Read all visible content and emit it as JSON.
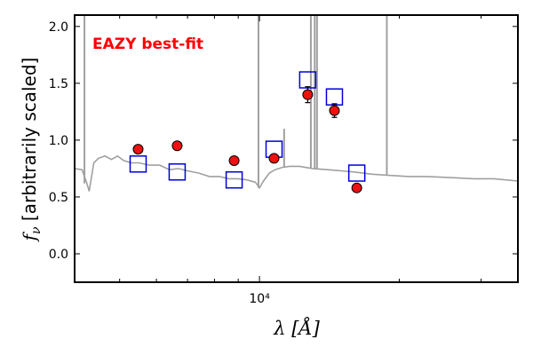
{
  "chart_data": {
    "type": "scatter",
    "title": "",
    "xlabel": "λ [Å]",
    "ylabel": "f_ν [arbitrarily scaled]",
    "x_scale": "log",
    "xlim": [
      4000,
      36000
    ],
    "ylim": [
      -0.25,
      2.1
    ],
    "y_ticks": [
      0.0,
      0.5,
      1.0,
      1.5,
      2.0
    ],
    "y_tick_labels": [
      "0.0",
      "0.5",
      "1.0",
      "1.5",
      "2.0"
    ],
    "x_tick_labels": [
      {
        "x": 10000,
        "label": "10⁴"
      }
    ],
    "grid": false,
    "annotation": {
      "text": "EAZY best-fit",
      "color": "#ff0000"
    },
    "colors": {
      "observed": "#ee1111",
      "model": "#0000dd",
      "template": "#a0a0a0"
    },
    "series": [
      {
        "role": "observed",
        "points": [
          {
            "x": 5480,
            "y": 0.92,
            "err": 0.03
          },
          {
            "x": 6650,
            "y": 0.95,
            "err": 0.02
          },
          {
            "x": 8820,
            "y": 0.82,
            "err": 0.02
          },
          {
            "x": 10750,
            "y": 0.84,
            "err": 0.03
          },
          {
            "x": 12700,
            "y": 1.4,
            "err": 0.07
          },
          {
            "x": 14500,
            "y": 1.26,
            "err": 0.06
          },
          {
            "x": 16200,
            "y": 0.58,
            "err": 0.02
          }
        ]
      },
      {
        "role": "model",
        "points": [
          {
            "x": 5480,
            "y": 0.79
          },
          {
            "x": 6650,
            "y": 0.72
          },
          {
            "x": 8820,
            "y": 0.65
          },
          {
            "x": 10750,
            "y": 0.92
          },
          {
            "x": 12700,
            "y": 1.53
          },
          {
            "x": 14500,
            "y": 1.38
          },
          {
            "x": 16200,
            "y": 0.71
          }
        ]
      },
      {
        "role": "template",
        "line": [
          [
            4000,
            0.75
          ],
          [
            4150,
            0.74
          ],
          [
            4250,
            0.62
          ],
          [
            4300,
            0.55
          ],
          [
            4400,
            0.8
          ],
          [
            4500,
            0.84
          ],
          [
            4650,
            0.86
          ],
          [
            4800,
            0.83
          ],
          [
            4950,
            0.86
          ],
          [
            5100,
            0.82
          ],
          [
            5300,
            0.8
          ],
          [
            5500,
            0.8
          ],
          [
            5800,
            0.78
          ],
          [
            6100,
            0.78
          ],
          [
            6400,
            0.74
          ],
          [
            6700,
            0.75
          ],
          [
            7000,
            0.73
          ],
          [
            7400,
            0.71
          ],
          [
            7800,
            0.68
          ],
          [
            8200,
            0.68
          ],
          [
            8600,
            0.66
          ],
          [
            9000,
            0.66
          ],
          [
            9400,
            0.65
          ],
          [
            9800,
            0.63
          ],
          [
            10000,
            0.58
          ],
          [
            10200,
            0.64
          ],
          [
            10500,
            0.71
          ],
          [
            10800,
            0.74
          ],
          [
            11200,
            0.76
          ],
          [
            11600,
            0.77
          ],
          [
            12200,
            0.77
          ],
          [
            13000,
            0.75
          ],
          [
            14000,
            0.74
          ],
          [
            15000,
            0.73
          ],
          [
            16000,
            0.72
          ],
          [
            17500,
            0.7
          ],
          [
            19000,
            0.69
          ],
          [
            21000,
            0.68
          ],
          [
            23000,
            0.68
          ],
          [
            26000,
            0.67
          ],
          [
            29000,
            0.66
          ],
          [
            32000,
            0.66
          ],
          [
            36000,
            0.64
          ]
        ],
        "spikes": [
          {
            "x": 4200,
            "y": 2.1
          },
          {
            "x": 9950,
            "y": 2.1
          },
          {
            "x": 11300,
            "y": 1.1
          },
          {
            "x": 12900,
            "y": 2.1
          },
          {
            "x": 13150,
            "y": 2.1
          },
          {
            "x": 13300,
            "y": 2.1
          },
          {
            "x": 18800,
            "y": 2.1
          }
        ]
      }
    ]
  }
}
